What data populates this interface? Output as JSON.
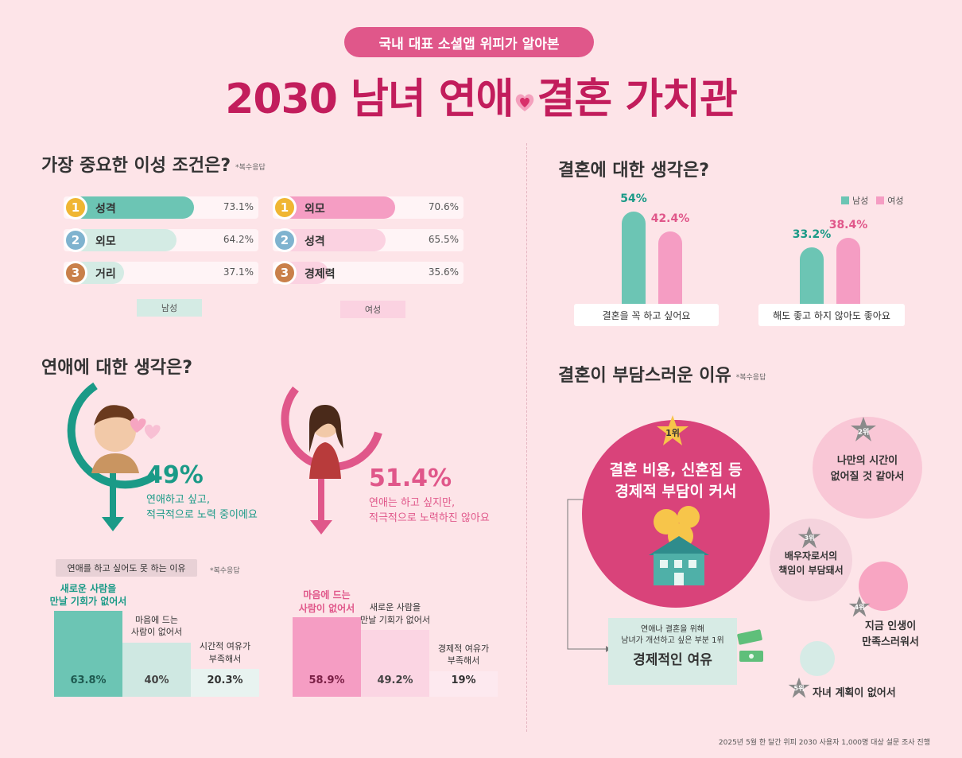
{
  "header": {
    "pill": "국내 대표 소셜앱 위피가 알아본",
    "title_left": "2030 남녀 연애",
    "title_right": "결혼 가치관"
  },
  "colors": {
    "male": "#6cc5b4",
    "female": "#f59dc3",
    "accent": "#c21d5c",
    "bg": "#fde4e8"
  },
  "chart_data": [
    {
      "type": "bar",
      "title": "가장 중요한 이성 조건은?",
      "note": "*복수응답",
      "series": [
        {
          "name": "남성",
          "categories": [
            "성격",
            "외모",
            "거리"
          ],
          "ranks": [
            "1",
            "2",
            "3"
          ],
          "values": [
            73.1,
            64.2,
            37.1
          ],
          "labels": [
            "73.1%",
            "64.2%",
            "37.1%"
          ]
        },
        {
          "name": "여성",
          "categories": [
            "외모",
            "성격",
            "경제력"
          ],
          "ranks": [
            "1",
            "2",
            "3"
          ],
          "values": [
            70.6,
            65.5,
            35.6
          ],
          "labels": [
            "70.6%",
            "65.5%",
            "35.6%"
          ]
        }
      ]
    },
    {
      "type": "bar",
      "title": "결혼에 대한 생각은?",
      "legend": [
        "남성",
        "여성"
      ],
      "categories": [
        "결혼을 꼭 하고 싶어요",
        "해도 좋고 하지 않아도 좋아요"
      ],
      "series": [
        {
          "name": "남성",
          "values": [
            54,
            33.2
          ],
          "labels": [
            "54%",
            "33.2%"
          ]
        },
        {
          "name": "여성",
          "values": [
            42.4,
            38.4
          ],
          "labels": [
            "42.4%",
            "38.4%"
          ]
        }
      ]
    },
    {
      "type": "bar",
      "title": "연애를 하고 싶어도 못 하는 이유",
      "note": "*복수응답",
      "series": [
        {
          "name": "남성",
          "categories": [
            "새로운 사람을 만날 기회가 없어서",
            "마음에 드는 사람이 없어서",
            "시간적 여유가 부족해서"
          ],
          "values": [
            63.8,
            40,
            20.3
          ],
          "labels": [
            "63.8%",
            "40%",
            "20.3%"
          ]
        },
        {
          "name": "여성",
          "categories": [
            "마음에 드는 사람이 없어서",
            "새로운 사람을 만날 기회가 없어서",
            "경제적 여유가 부족해서"
          ],
          "values": [
            58.9,
            49.2,
            19
          ],
          "labels": [
            "58.9%",
            "49.2%",
            "19%"
          ]
        }
      ]
    }
  ],
  "section_love": {
    "title": "연애에 대한 생각은?",
    "male": {
      "pct": "49%",
      "line1": "연애하고 싶고,",
      "line2": "적극적으로 노력 중이에요"
    },
    "female": {
      "pct": "51.4%",
      "line1": "연애는 하고 싶지만,",
      "line2": "적극적으로 노력하진 않아요"
    }
  },
  "male_reason_labels": [
    "새로운 사람을",
    "만날 기회가 없어서",
    "마음에 드는",
    "사람이 없어서",
    "시간적 여유가",
    "부족해서"
  ],
  "female_reason_labels": [
    "마음에 드는",
    "사람이 없어서",
    "새로운 사람을",
    "만날 기회가 없어서",
    "경제적 여유가",
    "부족해서"
  ],
  "burden": {
    "title": "결혼이 부담스러운 이유",
    "note": "*복수응답",
    "r1": {
      "rank": "1위",
      "l1": "결혼 비용, 신혼집 등",
      "l2": "경제적 부담이 커서"
    },
    "r2": {
      "rank": "2위",
      "l1": "나만의 시간이",
      "l2": "없어질 것 같아서"
    },
    "r3": {
      "rank": "3위",
      "l1": "배우자로서의",
      "l2": "책임이 부담돼서"
    },
    "r4": {
      "rank": "4위",
      "l1": "지금 인생이",
      "l2": "만족스러워서"
    },
    "r5": {
      "rank": "5위",
      "l1": "자녀 계획이 없어서"
    },
    "box": {
      "l1": "연애나 결혼을 위해",
      "l2": "남녀가 개선하고 싶은 부분 1위",
      "big": "경제적인 여유"
    }
  },
  "footer": "2025년 5월 한 달간 위피 2030 사용자 1,000명 대상 설문 조사 진행"
}
